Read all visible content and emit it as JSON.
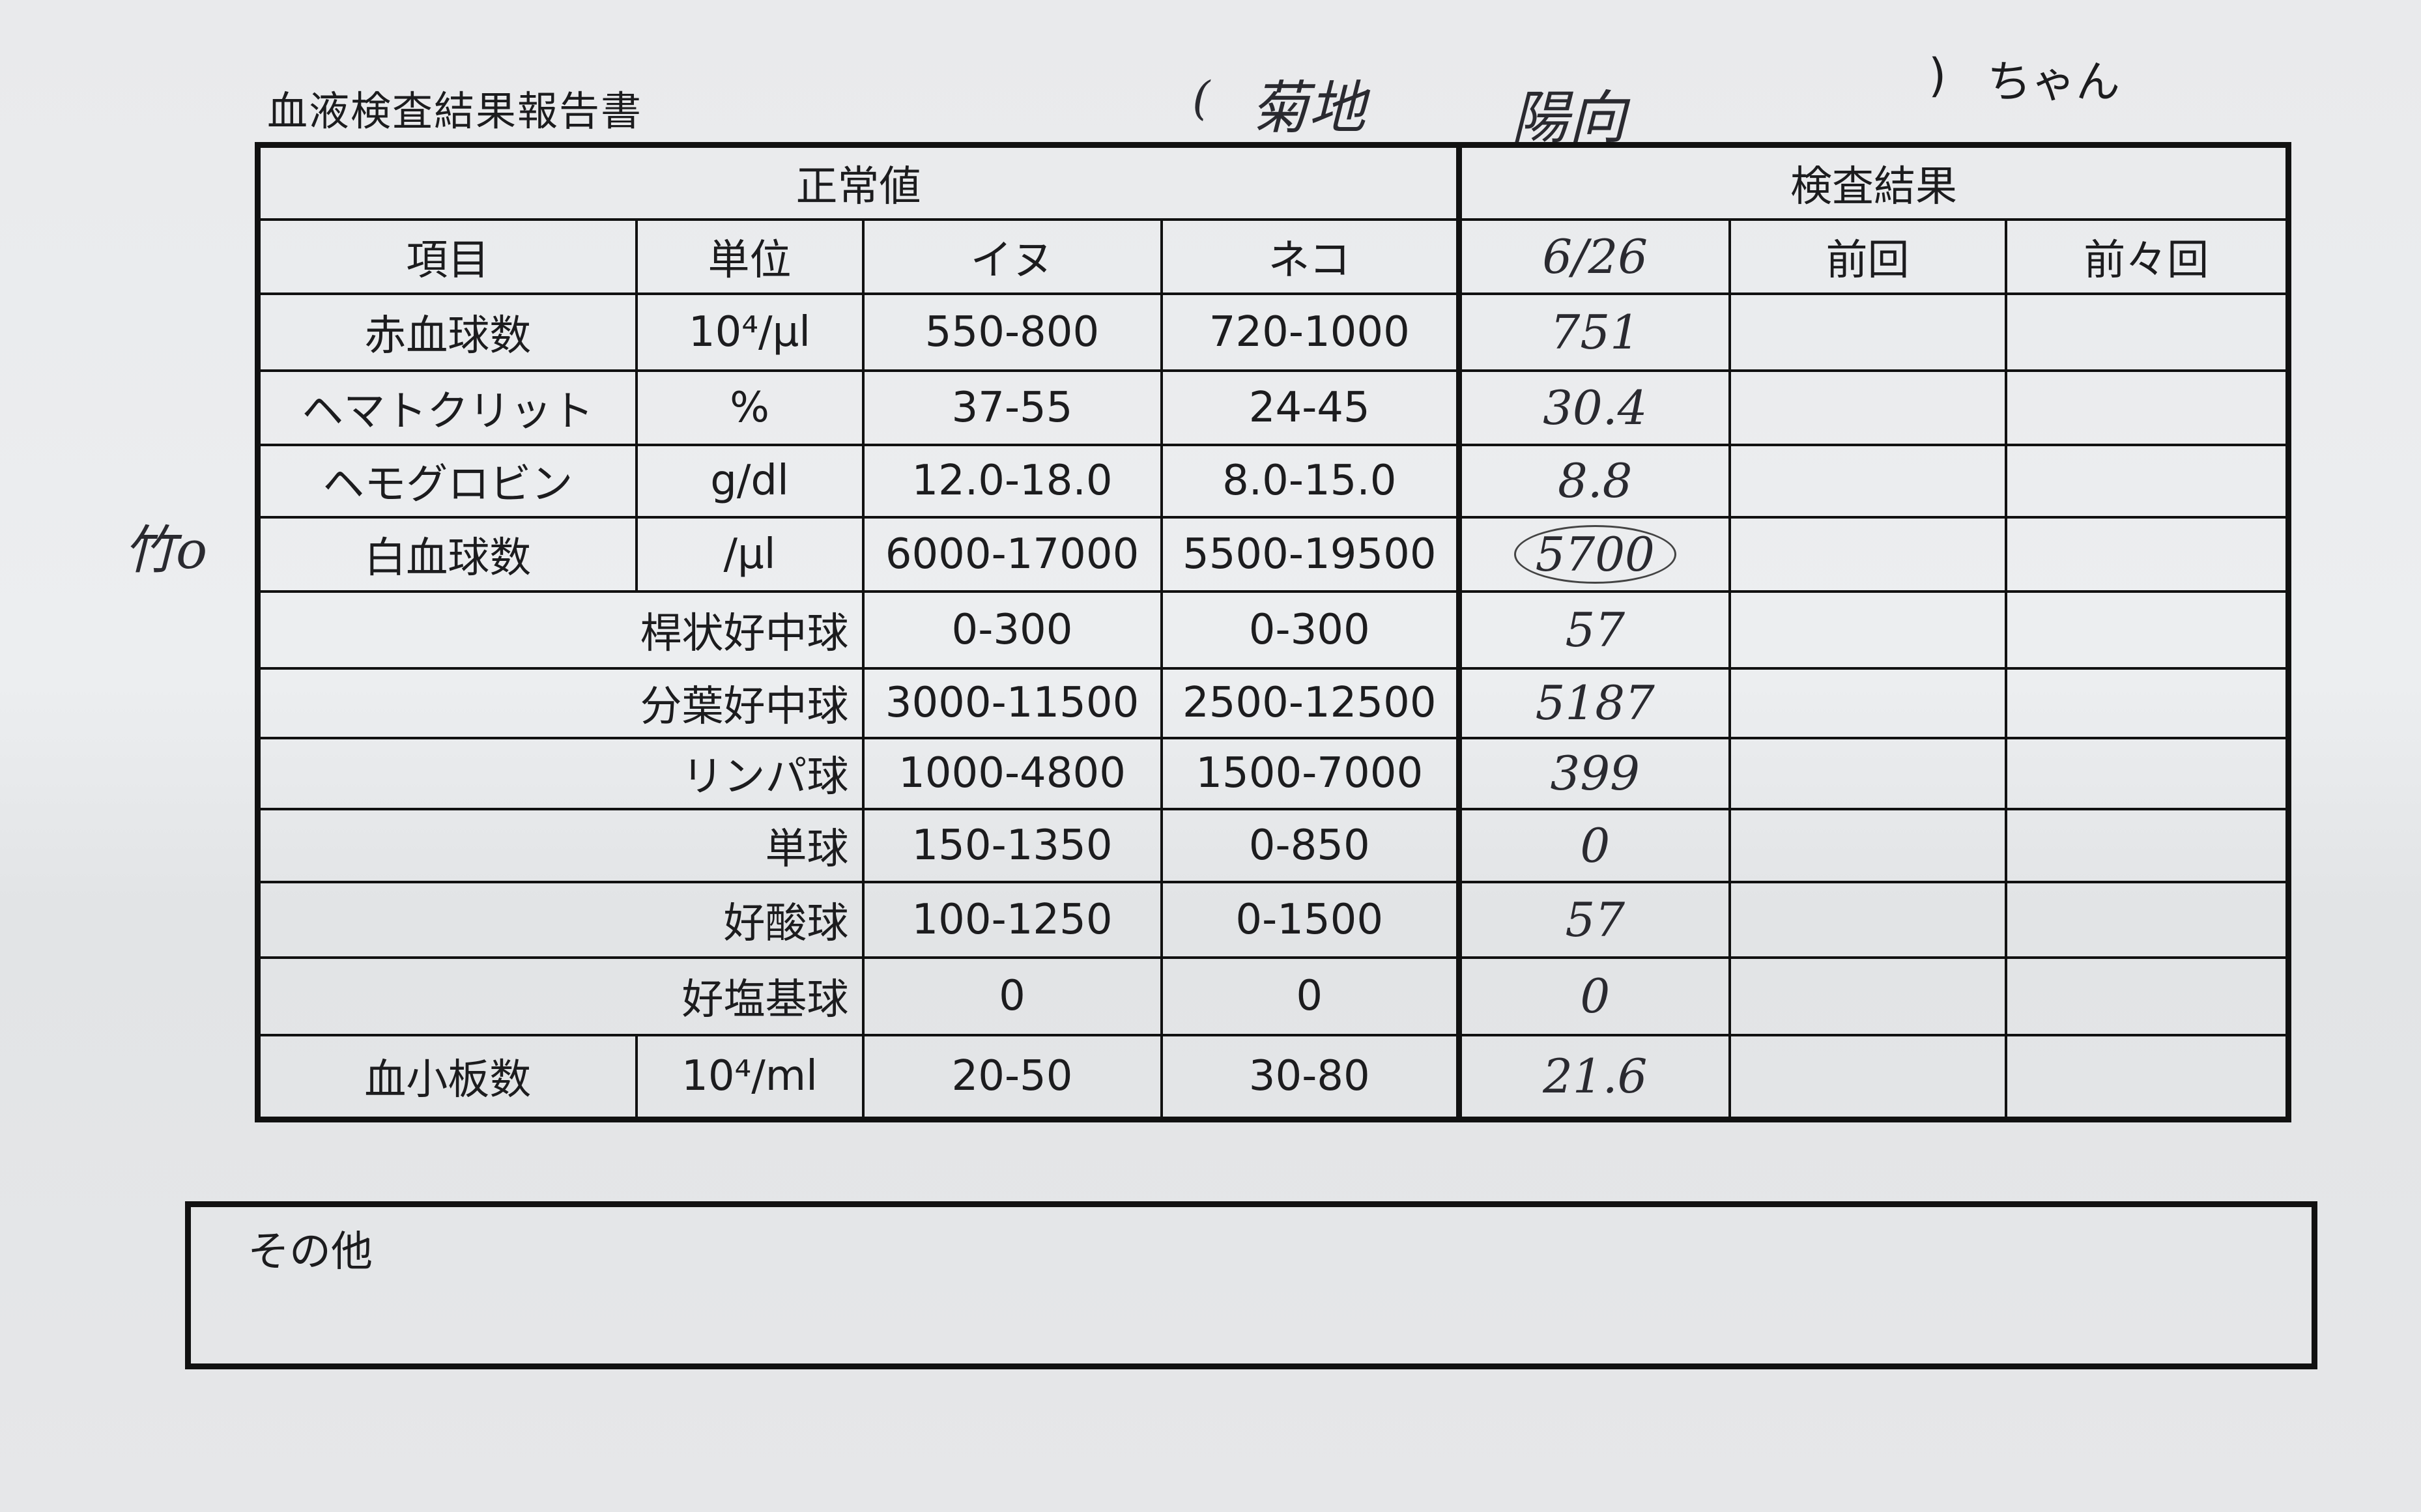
{
  "document": {
    "title": "血液検査結果報告書",
    "patient": {
      "open_paren": "(",
      "surname": "菊地",
      "given_name": "陽向",
      "close_paren": ")",
      "suffix": "ちゃん"
    },
    "margin_note": "竹o"
  },
  "table": {
    "group_headers": {
      "normal": "正常値",
      "results": "検査結果"
    },
    "column_headers": [
      "項目",
      "単位",
      "イヌ",
      "ネコ",
      "6/26",
      "前回",
      "前々回"
    ],
    "rows": [
      {
        "item": "赤血球数",
        "unit": "10⁴/μl",
        "dog": "550-800",
        "cat": "720-1000",
        "current": "751",
        "previous": "",
        "before_previous": ""
      },
      {
        "item": "ヘマトクリット",
        "unit": "%",
        "dog": "37-55",
        "cat": "24-45",
        "current": "30.4",
        "previous": "",
        "before_previous": ""
      },
      {
        "item": "ヘモグロビン",
        "unit": "g/dl",
        "dog": "12.0-18.0",
        "cat": "8.0-15.0",
        "current": "8.8",
        "previous": "",
        "before_previous": ""
      },
      {
        "item": "白血球数",
        "unit": "/μl",
        "dog": "6000-17000",
        "cat": "5500-19500",
        "current": "5700",
        "current_circled": true,
        "previous": "",
        "before_previous": ""
      },
      {
        "item": "桿状好中球",
        "sub": true,
        "dog": "0-300",
        "cat": "0-300",
        "current": "57",
        "previous": "",
        "before_previous": ""
      },
      {
        "item": "分葉好中球",
        "sub": true,
        "dog": "3000-11500",
        "cat": "2500-12500",
        "current": "5187",
        "previous": "",
        "before_previous": ""
      },
      {
        "item": "リンパ球",
        "sub": true,
        "dog": "1000-4800",
        "cat": "1500-7000",
        "current": "399",
        "previous": "",
        "before_previous": ""
      },
      {
        "item": "単球",
        "sub": true,
        "dog": "150-1350",
        "cat": "0-850",
        "current": "0",
        "previous": "",
        "before_previous": ""
      },
      {
        "item": "好酸球",
        "sub": true,
        "dog": "100-1250",
        "cat": "0-1500",
        "current": "57",
        "previous": "",
        "before_previous": ""
      },
      {
        "item": "好塩基球",
        "sub": true,
        "dog": "0",
        "cat": "0",
        "current": "0",
        "previous": "",
        "before_previous": ""
      },
      {
        "item": "血小板数",
        "unit": "10⁴/ml",
        "dog": "20-50",
        "cat": "30-80",
        "current": "21.6",
        "previous": "",
        "before_previous": ""
      }
    ]
  },
  "other": {
    "label": "その他",
    "value": ""
  }
}
